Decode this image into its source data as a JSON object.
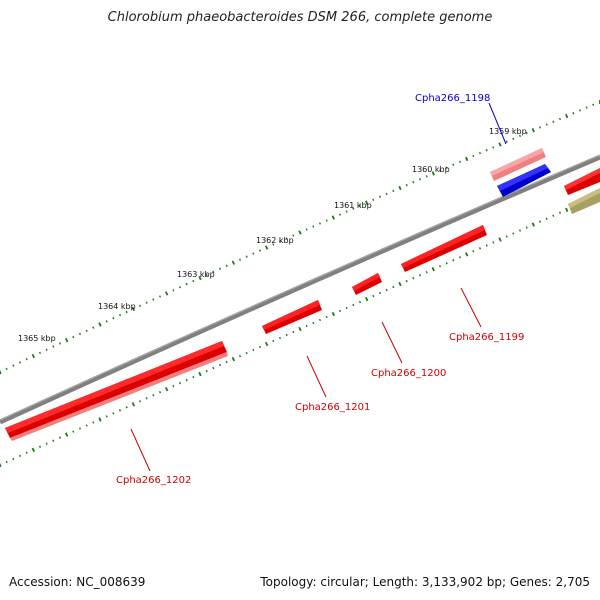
{
  "title": "Chlorobium phaeobacteroides DSM 266, complete genome",
  "footer": {
    "accession": "Accession: NC_008639",
    "summary": "Topology: circular; Length: 3,133,902 bp; Genes: 2,705"
  },
  "ruler": {
    "tick_labels": [
      "1359 kbp",
      "1360 kbp",
      "1361 kbp",
      "1362 kbp",
      "1363 kbp",
      "1364 kbp",
      "1365 kbp"
    ]
  },
  "genes": [
    {
      "id": "Cpha266_1198",
      "label": "Cpha266_1198",
      "color": "#0000cc",
      "strand": "forward"
    },
    {
      "id": "Cpha266_1199",
      "label": "Cpha266_1199",
      "color": "#cc0000",
      "strand": "reverse"
    },
    {
      "id": "Cpha266_1200",
      "label": "Cpha266_1200",
      "color": "#cc0000",
      "strand": "reverse"
    },
    {
      "id": "Cpha266_1201",
      "label": "Cpha266_1201",
      "color": "#cc0000",
      "strand": "reverse"
    },
    {
      "id": "Cpha266_1202",
      "label": "Cpha266_1202",
      "color": "#cc0000",
      "strand": "reverse"
    }
  ],
  "colors": {
    "backbone": "#808080",
    "cds_reverse": "#ff0000",
    "cds_forward_highlight": "#0000ff",
    "cds_faded": "#f08080",
    "cds_other": "#a8a060",
    "gc_ticks": "#1a7a1a"
  }
}
